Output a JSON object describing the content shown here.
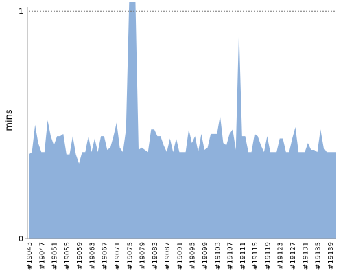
{
  "chart_data": {
    "type": "area",
    "y_label": "mins",
    "categories": [
      "#19043",
      null,
      null,
      null,
      "#19047",
      null,
      null,
      null,
      "#19051",
      null,
      null,
      null,
      "#19055",
      null,
      null,
      null,
      "#19059",
      null,
      null,
      null,
      "#19063",
      null,
      null,
      null,
      "#19067",
      null,
      null,
      null,
      "#19071",
      null,
      null,
      null,
      "#19075",
      null,
      null,
      null,
      "#19079",
      null,
      null,
      null,
      "#19083",
      null,
      null,
      null,
      "#19087",
      null,
      null,
      null,
      "#19091",
      null,
      null,
      null,
      "#19095",
      null,
      null,
      null,
      "#19099",
      null,
      null,
      null,
      "#19103",
      null,
      null,
      null,
      "#19107",
      null,
      null,
      null,
      "#19111",
      null,
      null,
      null,
      "#19115",
      null,
      null,
      null,
      "#19119",
      null,
      null,
      null,
      "#19123",
      null,
      null,
      null,
      "#19127",
      null,
      null,
      null,
      "#19131",
      null,
      null,
      null,
      "#19135",
      null,
      null,
      null,
      "#19139",
      null,
      null
    ],
    "values": [
      0.37,
      0.38,
      0.5,
      0.42,
      0.38,
      0.38,
      0.52,
      0.45,
      0.41,
      0.45,
      0.45,
      0.46,
      0.37,
      0.37,
      0.45,
      0.37,
      0.33,
      0.38,
      0.38,
      0.45,
      0.38,
      0.44,
      0.38,
      0.45,
      0.45,
      0.39,
      0.4,
      0.45,
      0.51,
      0.4,
      0.38,
      0.48,
      1.04,
      1.04,
      1.04,
      0.39,
      0.4,
      0.39,
      0.38,
      0.48,
      0.48,
      0.45,
      0.45,
      0.41,
      0.38,
      0.44,
      0.38,
      0.44,
      0.38,
      0.38,
      0.38,
      0.48,
      0.42,
      0.45,
      0.38,
      0.46,
      0.39,
      0.4,
      0.46,
      0.46,
      0.46,
      0.54,
      0.42,
      0.41,
      0.46,
      0.48,
      0.39,
      0.92,
      0.45,
      0.45,
      0.38,
      0.38,
      0.46,
      0.45,
      0.41,
      0.38,
      0.45,
      0.38,
      0.38,
      0.38,
      0.44,
      0.44,
      0.38,
      0.38,
      0.44,
      0.49,
      0.38,
      0.38,
      0.38,
      0.42,
      0.39,
      0.39,
      0.38,
      0.48,
      0.4,
      0.38,
      0.38,
      0.38,
      0.38
    ],
    "color": "#8fb1db",
    "ylim": [
      0,
      1.04
    ],
    "yticks": [
      0,
      1
    ],
    "grid": true
  }
}
